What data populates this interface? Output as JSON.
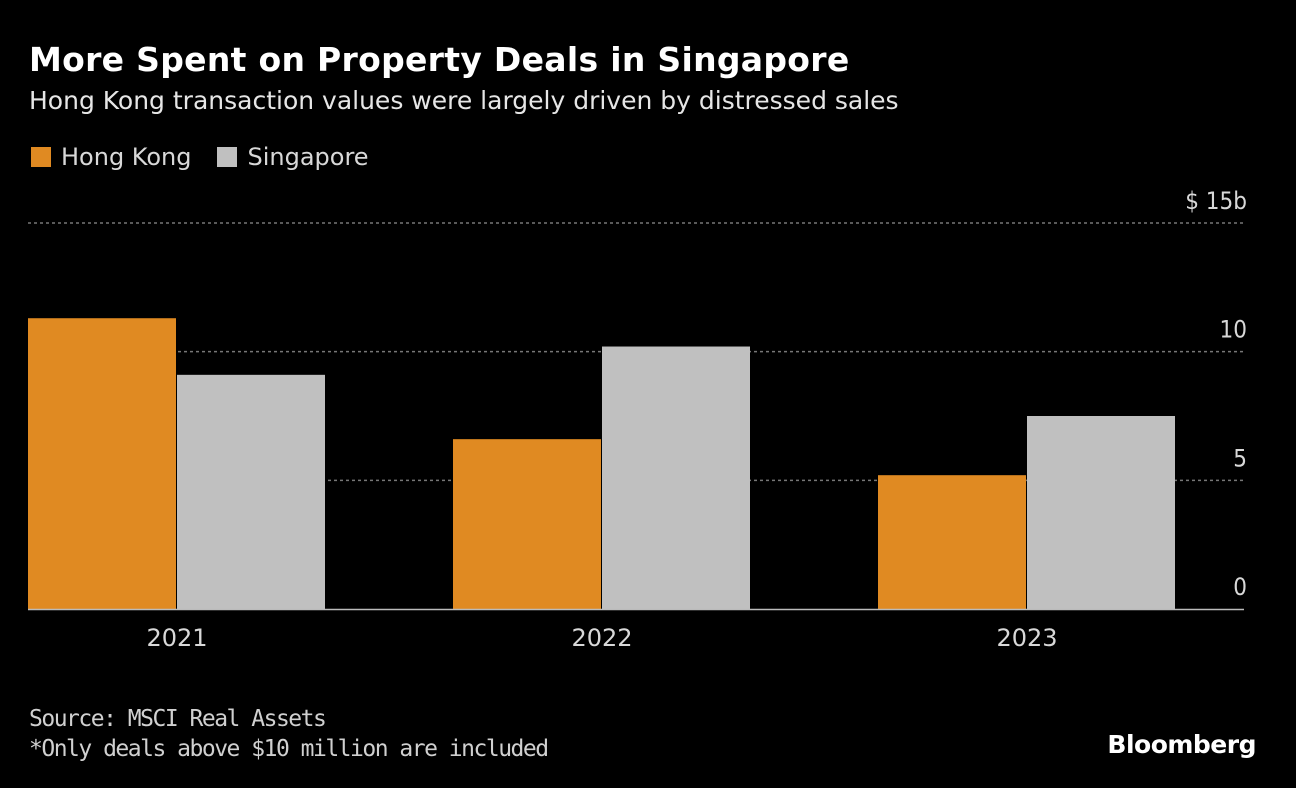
{
  "chart_data": {
    "type": "bar",
    "title": "More Spent on Property Deals in Singapore",
    "subtitle": "Hong Kong transaction values were largely driven by distressed sales",
    "categories": [
      "2021",
      "2022",
      "2023"
    ],
    "series": [
      {
        "name": "Hong Kong",
        "color": "#e08a22",
        "values": [
          11.3,
          6.6,
          5.2
        ]
      },
      {
        "name": "Singapore",
        "color": "#c0c0c0",
        "values": [
          9.1,
          10.2,
          7.5
        ]
      }
    ],
    "ylim": [
      0,
      15
    ],
    "yticks": [
      {
        "value": 0,
        "label": "0"
      },
      {
        "value": 5,
        "label": "5"
      },
      {
        "value": 10,
        "label": "10"
      },
      {
        "value": 15,
        "label": "$ 15b"
      }
    ],
    "grid": true,
    "legend_position": "top-left"
  },
  "footer": {
    "source": "Source: MSCI Real Assets",
    "note": "*Only deals above $10 million are included",
    "logo": "Bloomberg"
  }
}
